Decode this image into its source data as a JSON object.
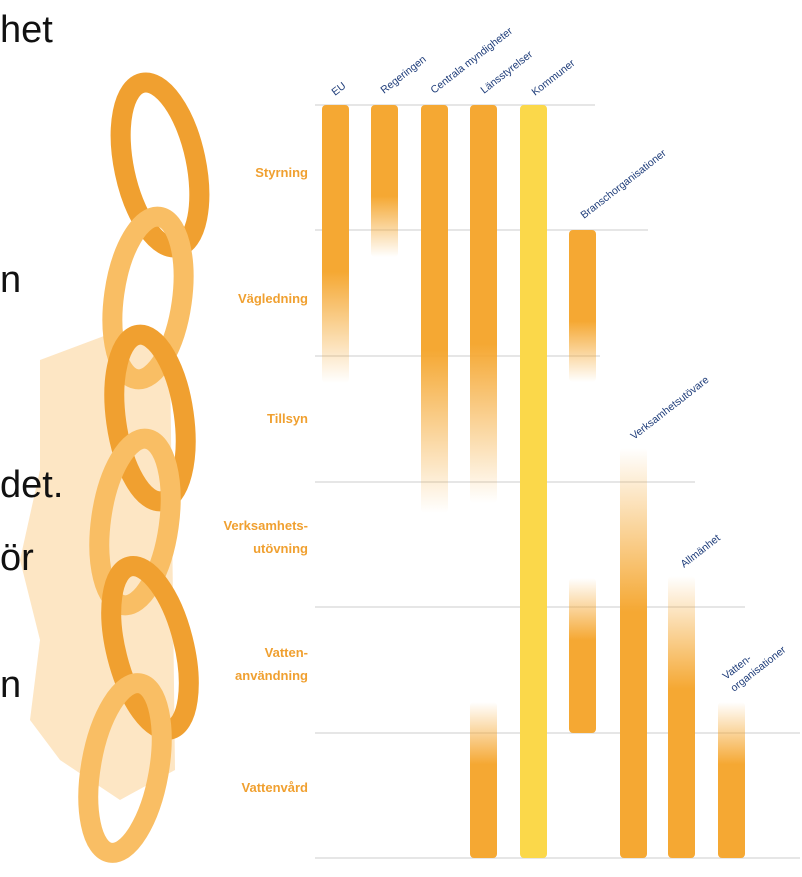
{
  "left_text": [
    "het",
    "n",
    "det.",
    "ör",
    "n"
  ],
  "rows": [
    [
      "Styrning"
    ],
    [
      "Vägledning"
    ],
    [
      "Tillsyn"
    ],
    [
      "Verksamhets-",
      "utövning"
    ],
    [
      "Vatten-",
      "användning"
    ],
    [
      "Vattenvård"
    ]
  ],
  "columns": [
    [
      "EU"
    ],
    [
      "Regeringen"
    ],
    [
      "Centrala myndigheter"
    ],
    [
      "Länsstyrelser"
    ],
    [
      "Kommuner"
    ],
    [
      "Branschorganisationer"
    ],
    [
      "Verksamhetsutövare"
    ],
    [
      "Allmänhet"
    ],
    [
      "Vatten-",
      "organisationer"
    ]
  ]
}
